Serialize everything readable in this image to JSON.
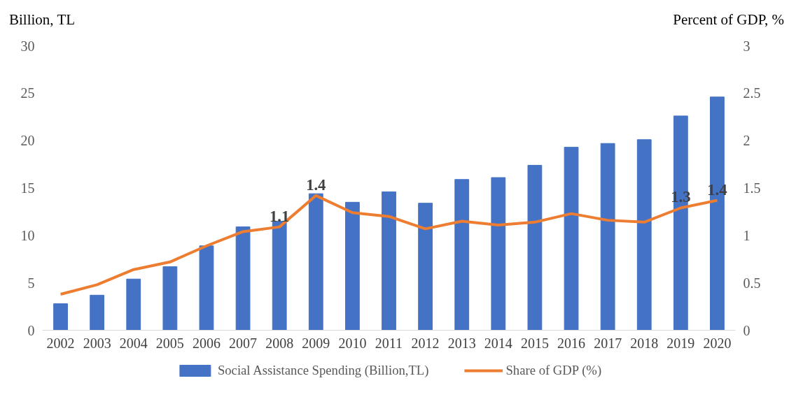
{
  "chart_data": {
    "type": "bar",
    "ylabel": "Billion, TL",
    "y2label": "Percent of GDP, %",
    "categories": [
      "2002",
      "2003",
      "2004",
      "2005",
      "2006",
      "2007",
      "2008",
      "2009",
      "2010",
      "2011",
      "2012",
      "2013",
      "2014",
      "2015",
      "2016",
      "2017",
      "2018",
      "2019",
      "2020"
    ],
    "series": [
      {
        "name": "Social Assistance Spending (Billion,TL)",
        "color": "#4472c4",
        "values": [
          2.8,
          3.7,
          5.4,
          6.7,
          8.9,
          10.9,
          11.5,
          14.4,
          13.5,
          14.6,
          13.4,
          15.9,
          16.1,
          17.4,
          19.3,
          19.7,
          20.1,
          22.6,
          24.6
        ]
      },
      {
        "name": "Share of GDP (%)",
        "type": "line",
        "axis": "y2",
        "color": "#ed7d31",
        "values": [
          0.38,
          0.48,
          0.64,
          0.72,
          0.89,
          1.04,
          1.09,
          1.42,
          1.24,
          1.2,
          1.07,
          1.15,
          1.11,
          1.14,
          1.23,
          1.16,
          1.14,
          1.29,
          1.37
        ],
        "value_labels": [
          null,
          null,
          null,
          null,
          null,
          null,
          "1.1",
          "1.4",
          null,
          null,
          null,
          null,
          null,
          null,
          null,
          null,
          null,
          "1.3",
          "1.4"
        ]
      }
    ],
    "ylim": [
      0,
      30
    ],
    "yticks": [
      0,
      5,
      10,
      15,
      20,
      25,
      30
    ],
    "y2lim": [
      0,
      3
    ],
    "y2ticks": [
      0,
      0.5,
      1,
      1.5,
      2,
      2.5,
      3
    ],
    "grid": false,
    "legend": "bottom",
    "marker": "none",
    "line_style": "solid"
  }
}
